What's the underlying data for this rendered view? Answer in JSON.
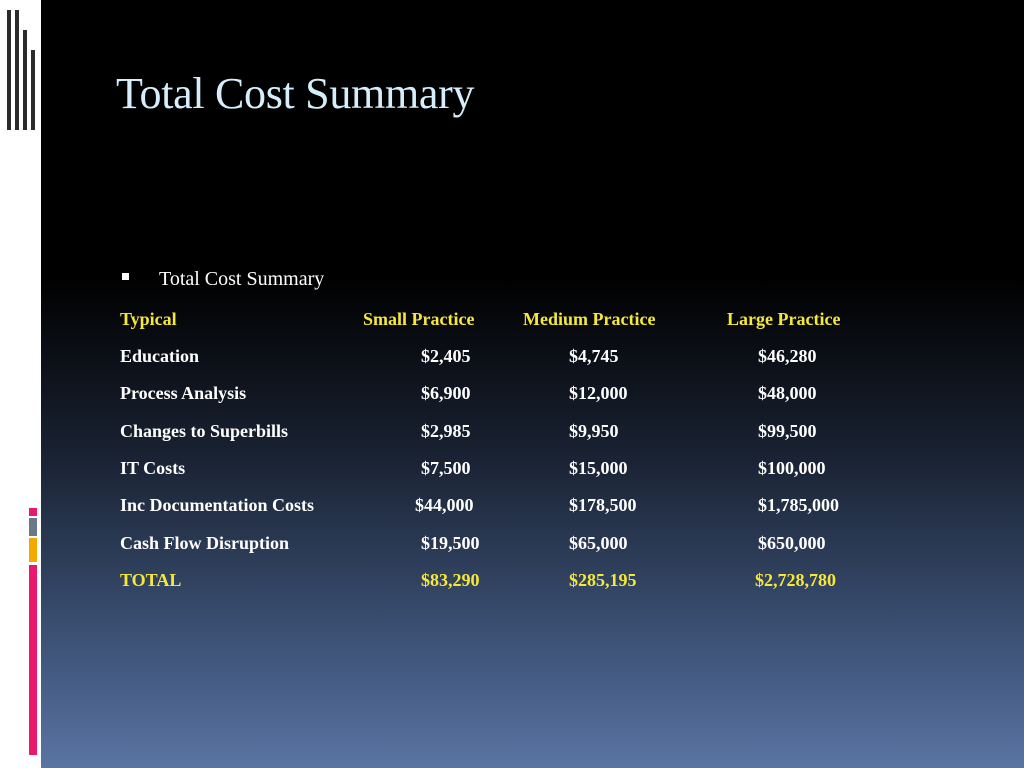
{
  "slide": {
    "title": "Total Cost Summary",
    "bullet": "Total Cost Summary"
  },
  "table": {
    "headers": [
      "Typical",
      "Small Practice",
      "Medium Practice",
      "Large Practice"
    ],
    "rows": [
      [
        "Education",
        "$2,405",
        "$4,745",
        "$46,280"
      ],
      [
        "Process Analysis",
        "$6,900",
        "$12,000",
        "$48,000"
      ],
      [
        "Changes to Superbills",
        "$2,985",
        "$9,950",
        "$99,500"
      ],
      [
        "IT Costs",
        "$7,500",
        "$15,000",
        "$100,000"
      ],
      [
        "Inc Documentation Costs",
        "$44,000",
        "$178,500",
        "$1,785,000"
      ],
      [
        "Cash Flow Disruption",
        "$19,500",
        "$65,000",
        "$650,000"
      ]
    ],
    "total": [
      "TOTAL",
      "$83,290",
      "$285,195",
      "$2,728,780"
    ]
  },
  "colors": {
    "title": "#d6eefb",
    "header_and_total": "#f5e83a",
    "body_text": "#ffffff",
    "accent_pink": "#e8186d",
    "accent_gray": "#6b7789",
    "accent_orange": "#f2a900"
  }
}
